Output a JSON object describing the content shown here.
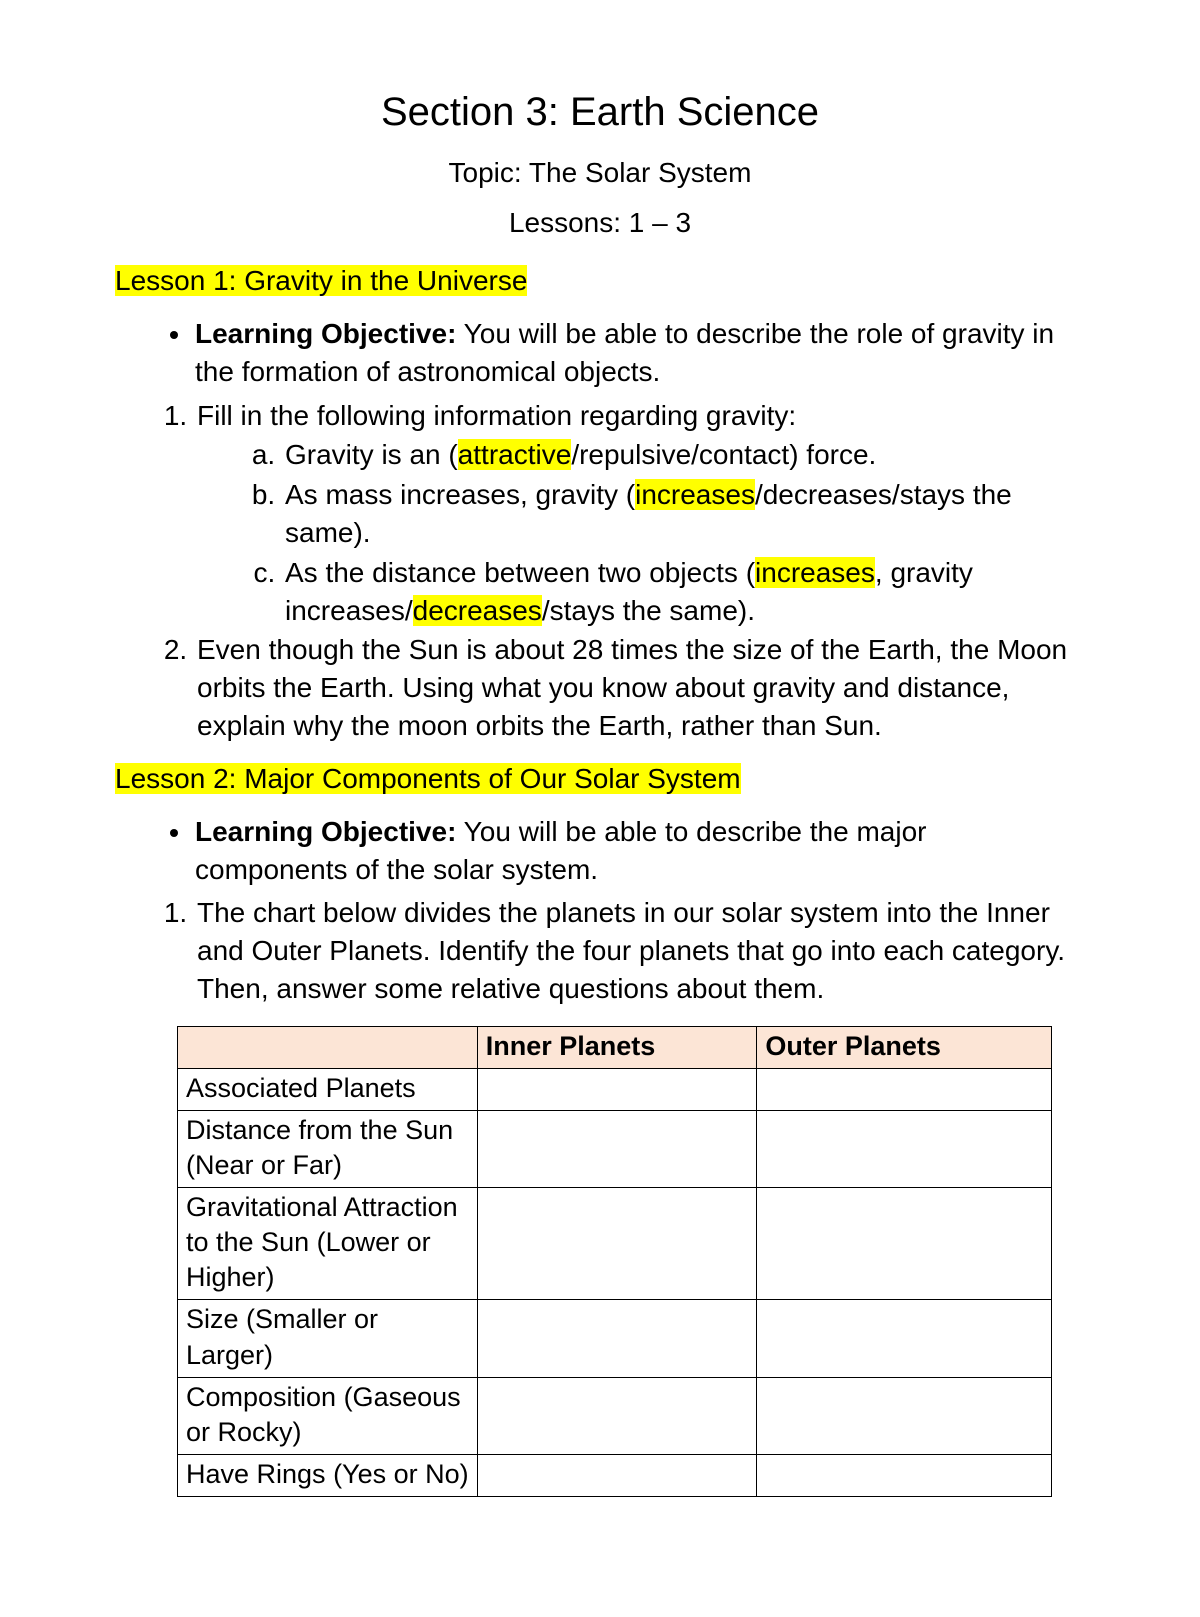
{
  "header": {
    "section_title": "Section 3: Earth Science",
    "topic": "Topic: The Solar System",
    "lessons_range": "Lessons: 1 – 3"
  },
  "highlight_color": "#ffff00",
  "text_color": "#000000",
  "background_color": "#ffffff",
  "lesson1": {
    "heading": "Lesson 1: Gravity in the Universe",
    "objective_label": "Learning Objective:",
    "objective_text": " You will be able to describe the role of gravity in the formation of astronomical objects.",
    "q1_intro": "Fill in the following information regarding gravity:",
    "a_pre": "Gravity is an (",
    "a_hl": "attractive",
    "a_post": "/repulsive/contact) force.",
    "b_pre": "As mass increases, gravity (",
    "b_hl": "increases",
    "b_post": "/decreases/stays the same).",
    "c_pre": "As the distance between two objects (",
    "c_hl1": "increases",
    "c_mid": ", gravity increases/",
    "c_hl2": "decreases",
    "c_post": "/stays the same).",
    "q2": "Even though the Sun is about 28 times the size of the Earth, the Moon orbits the Earth. Using what you know about gravity and distance, explain why the moon orbits the Earth, rather than Sun."
  },
  "lesson2": {
    "heading": "Lesson 2: Major Components of Our Solar System",
    "objective_label": "Learning Objective:",
    "objective_text": " You will be able to describe the major components of the solar system.",
    "q1": "The chart below divides the planets in our solar system into the Inner and Outer Planets. Identify the four planets that go into each category. Then, answer some relative questions about them."
  },
  "table": {
    "header_bg": "#fce5d6",
    "border_color": "#000000",
    "columns": [
      "",
      "Inner Planets",
      "Outer Planets"
    ],
    "rows": [
      {
        "label": "Associated Planets",
        "inner": "",
        "outer": ""
      },
      {
        "label": "Distance from the Sun (Near or Far)",
        "inner": "",
        "outer": ""
      },
      {
        "label": "Gravitational Attraction to the Sun (Lower or Higher)",
        "inner": "",
        "outer": ""
      },
      {
        "label": "Size (Smaller or Larger)",
        "inner": "",
        "outer": ""
      },
      {
        "label": "Composition (Gaseous or Rocky)",
        "inner": "",
        "outer": ""
      },
      {
        "label": "Have Rings (Yes or No)",
        "inner": "",
        "outer": ""
      }
    ]
  }
}
